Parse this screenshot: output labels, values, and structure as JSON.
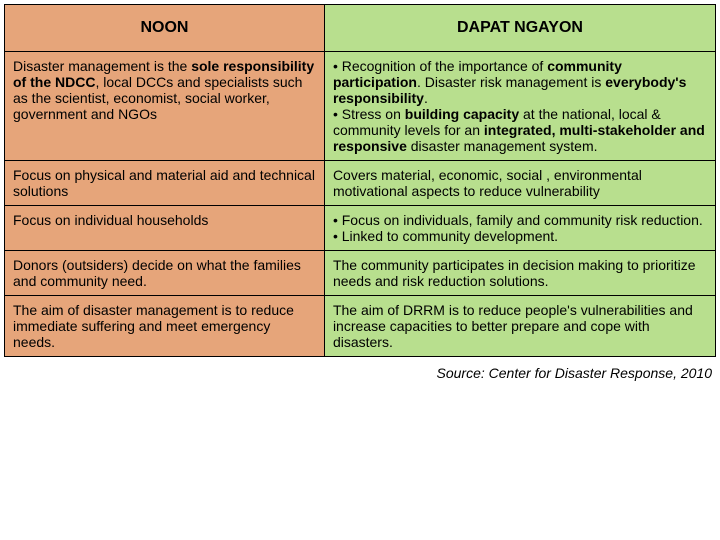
{
  "colors": {
    "header_left_bg": "#e6a57a",
    "header_right_bg": "#b8df8e",
    "row_left_bg": "#e6a57a",
    "row_right_bg": "#b8df8e",
    "border": "#000000",
    "text": "#000000"
  },
  "typography": {
    "body_fontsize": 14,
    "header_fontsize": 16,
    "source_fontsize": 14
  },
  "headers": {
    "left": "NOON",
    "right": "DAPAT NGAYON"
  },
  "rows": [
    {
      "left_html": "Disaster management is the <span class='bold'>sole responsibility of the NDCC</span>, local DCCs and specialists such as the scientist, economist, social worker, government and NGOs",
      "right_html": "• Recognition of the importance of <span class='bold'>community participation</span>. Disaster risk management is <span class='bold'>everybody's responsibility</span>.<br>• Stress on <span class='bold'>building capacity</span> at the national, local & community levels for an <span class='bold'>integrated, multi-stakeholder and responsive</span> disaster management system."
    },
    {
      "left_html": "Focus on physical and material aid and technical solutions",
      "right_html": "Covers material, economic, social , environmental motivational aspects to reduce vulnerability"
    },
    {
      "left_html": "Focus on individual households",
      "right_html": "• Focus on individuals, family and community risk reduction.<br>• Linked to community development."
    },
    {
      "left_html": "Donors (outsiders) decide on what the families and community need.",
      "right_html": "The community participates in decision making to prioritize needs and risk reduction solutions."
    },
    {
      "left_html": "The aim of disaster management is to reduce immediate suffering and meet emergency needs.",
      "right_html": "The aim of DRRM is to reduce people's vulnerabilities and increase capacities to better prepare and cope with disasters."
    }
  ],
  "source": "Source: Center for Disaster Response, 2010"
}
